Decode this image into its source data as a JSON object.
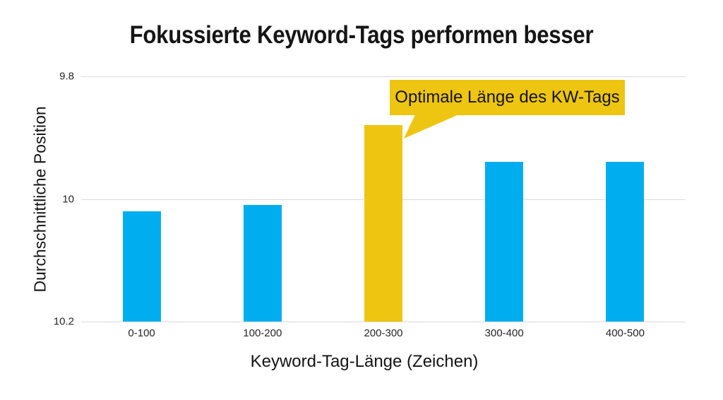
{
  "chart_data": {
    "type": "bar",
    "title": "Fokussierte Keyword-Tags performen besser",
    "categories": [
      "0-100",
      "100-200",
      "200-300",
      "300-400",
      "400-500"
    ],
    "values": [
      10.02,
      10.01,
      9.88,
      9.94,
      9.94
    ],
    "xlabel": "Keyword-Tag-Länge (Zeichen)",
    "ylabel": "Durchschnittliche Position",
    "y_axis": {
      "min": 9.8,
      "max": 10.2,
      "inverted": true,
      "ticks": [
        9.8,
        10,
        10.2
      ],
      "tick_labels": [
        "9.8",
        "10",
        "10.2"
      ]
    },
    "grid": "horizontal",
    "legend": "none",
    "highlight_index": 2,
    "annotation": {
      "text": "Optimale Länge des KW-Tags",
      "target_category": "200-300",
      "shape": "speech-bubble"
    },
    "colors": {
      "bar": "#00AEEF",
      "highlight": "#EEC510",
      "gridline": "#DCDCDC",
      "text": "#151515",
      "background": "#FFFFFF"
    }
  }
}
